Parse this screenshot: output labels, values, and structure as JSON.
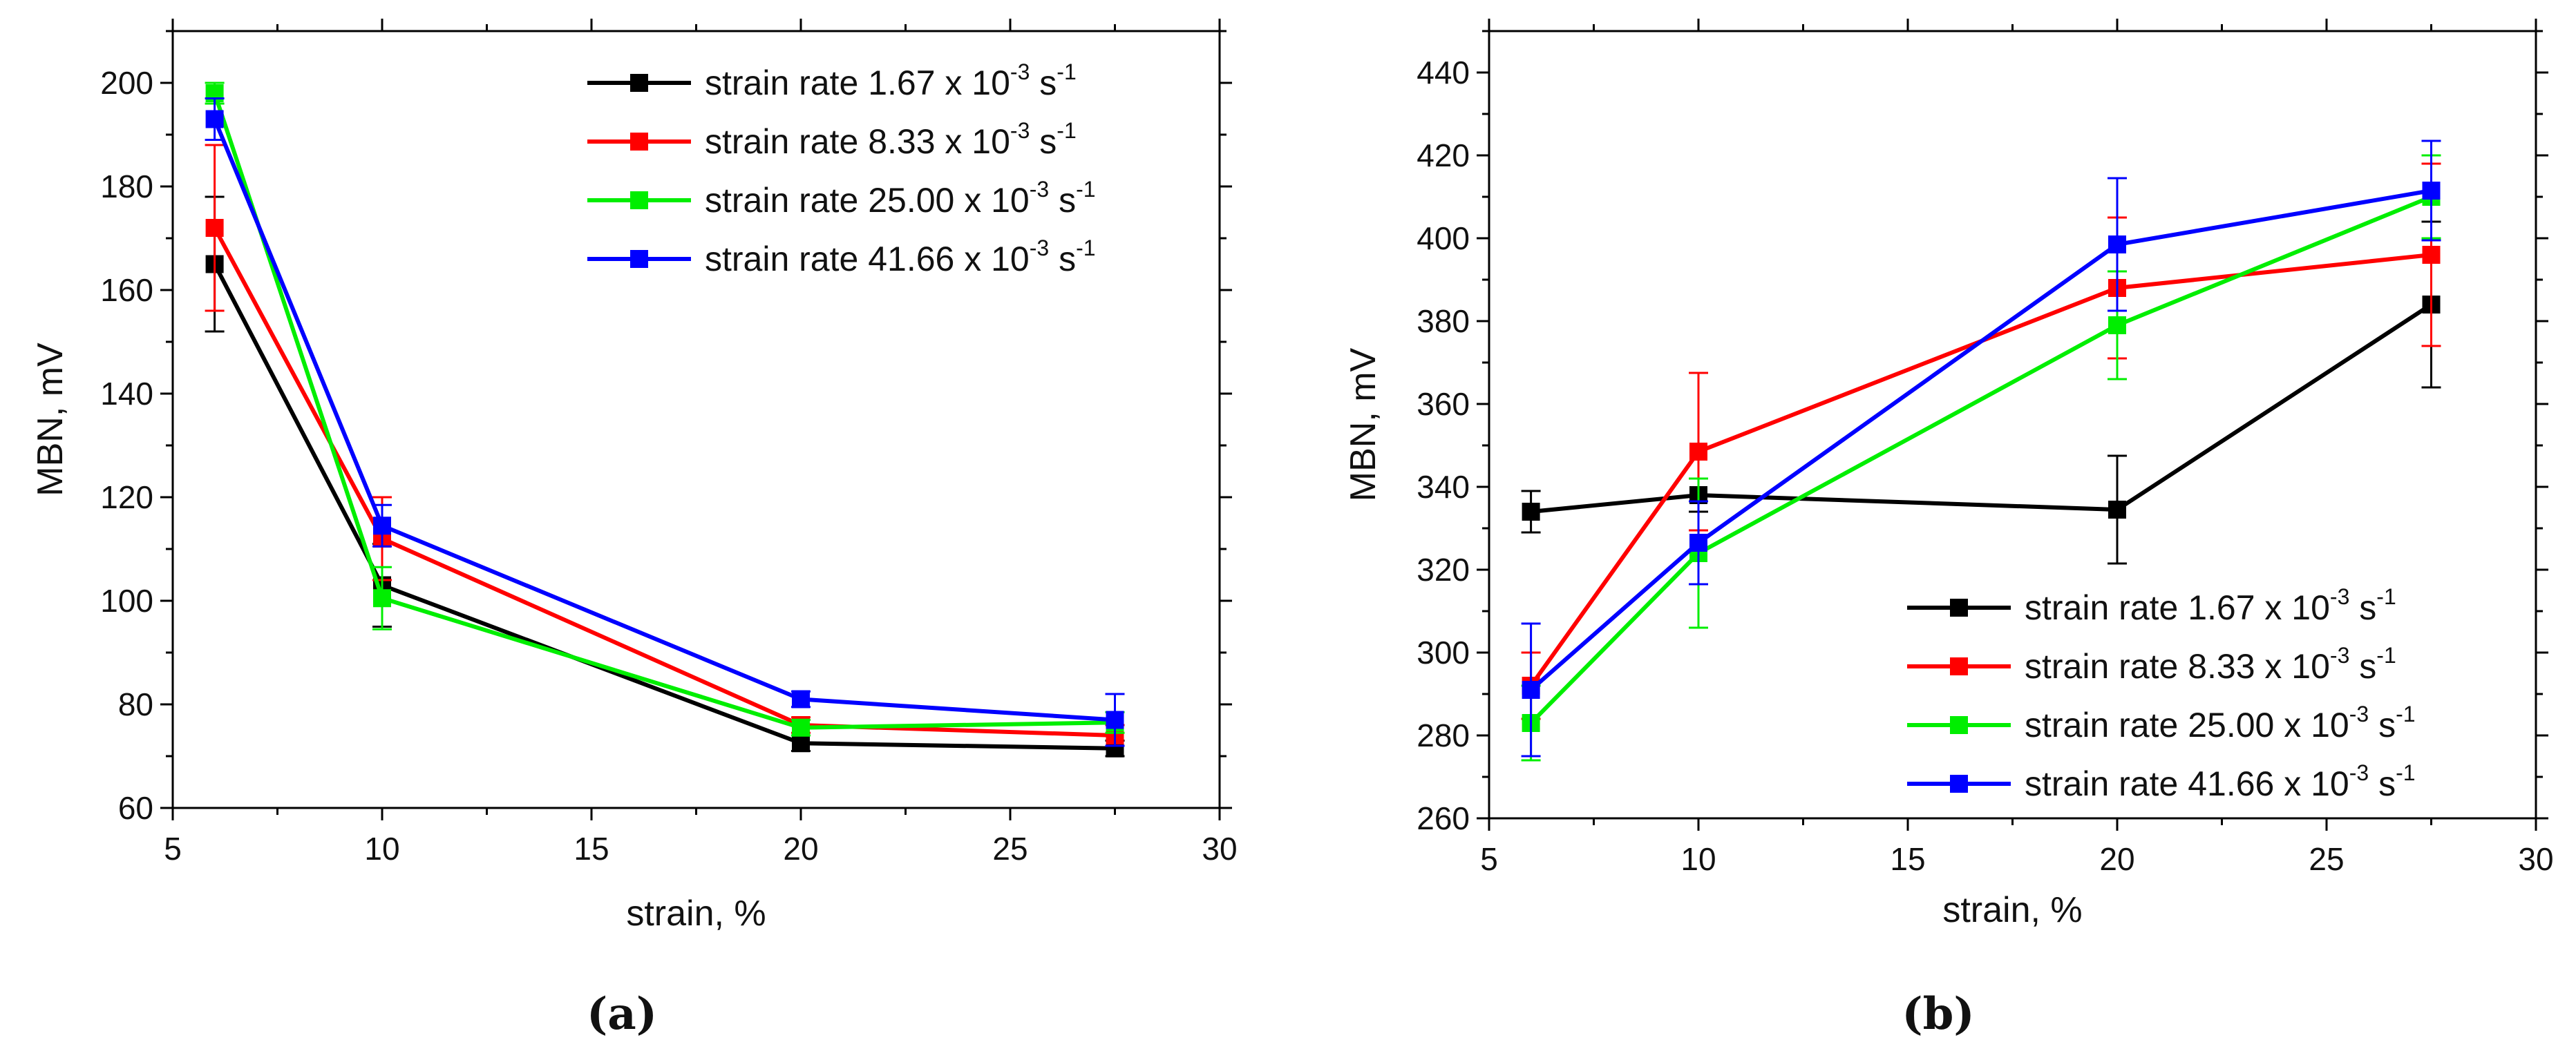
{
  "chart_data": [
    {
      "type": "line",
      "panel_label": "(a)",
      "xlabel": "strain, %",
      "ylabel": "MBN, mV",
      "xlim": [
        5,
        30
      ],
      "ylim": [
        60,
        210
      ],
      "xticks": [
        5,
        10,
        15,
        20,
        25,
        30
      ],
      "yticks": [
        60,
        80,
        100,
        120,
        140,
        160,
        180,
        200
      ],
      "x": [
        6,
        10,
        20,
        27.5
      ],
      "legend_position": "top-right",
      "series": [
        {
          "name": "strain rate 1.67 x 10⁻³ s⁻¹",
          "label_main": "strain rate 1.67 x 10",
          "exp": "-3",
          "unit": " s",
          "unit_exp": "-1",
          "color": "#000000",
          "values": [
            165,
            103,
            72.5,
            71.5
          ],
          "errors": [
            13,
            8,
            1.5,
            1.5
          ]
        },
        {
          "name": "strain rate 8.33 x 10⁻³ s⁻¹",
          "label_main": "strain rate 8.33 x 10",
          "exp": "-3",
          "unit": " s",
          "unit_exp": "-1",
          "color": "#ff0000",
          "values": [
            172,
            112,
            76,
            74
          ],
          "errors": [
            16,
            8,
            1.5,
            2
          ]
        },
        {
          "name": "strain rate 25.00 x 10⁻³ s⁻¹",
          "label_main": "strain rate 25.00 x 10",
          "exp": "-3",
          "unit": " s",
          "unit_exp": "-1",
          "color": "#00ee00",
          "values": [
            198,
            100.5,
            75.5,
            76.5
          ],
          "errors": [
            2,
            6,
            1.5,
            2
          ]
        },
        {
          "name": "strain rate 41.66 x 10⁻³ s⁻¹",
          "label_main": "strain rate 41.66 x 10",
          "exp": "-3",
          "unit": " s",
          "unit_exp": "-1",
          "color": "#0000ff",
          "values": [
            193,
            114.5,
            81,
            77
          ],
          "errors": [
            4,
            4,
            1.5,
            5
          ]
        }
      ]
    },
    {
      "type": "line",
      "panel_label": "(b)",
      "xlabel": "strain, %",
      "ylabel": "MBN, mV",
      "xlim": [
        5,
        30
      ],
      "ylim": [
        260,
        450
      ],
      "xticks": [
        5,
        10,
        15,
        20,
        25,
        30
      ],
      "yticks": [
        260,
        280,
        300,
        320,
        340,
        360,
        380,
        400,
        420,
        440
      ],
      "x": [
        6,
        10,
        20,
        27.5
      ],
      "legend_position": "bottom-right",
      "series": [
        {
          "name": "strain rate 1.67 x 10⁻³ s⁻¹",
          "label_main": "strain rate 1.67 x 10",
          "exp": "-3",
          "unit": " s",
          "unit_exp": "-1",
          "color": "#000000",
          "values": [
            334,
            338,
            334.5,
            384
          ],
          "errors": [
            5,
            4,
            13,
            20
          ]
        },
        {
          "name": "strain rate 8.33 x 10⁻³ s⁻¹",
          "label_main": "strain rate 8.33 x 10",
          "exp": "-3",
          "unit": " s",
          "unit_exp": "-1",
          "color": "#ff0000",
          "values": [
            292,
            348.5,
            388,
            396
          ],
          "errors": [
            8,
            19,
            17,
            22
          ]
        },
        {
          "name": "strain rate 25.00 x 10⁻³ s⁻¹",
          "label_main": "strain rate 25.00 x 10",
          "exp": "-3",
          "unit": " s",
          "unit_exp": "-1",
          "color": "#00ee00",
          "values": [
            283,
            324,
            379,
            410
          ],
          "errors": [
            9,
            18,
            13,
            10
          ]
        },
        {
          "name": "strain rate 41.66 x 10⁻³ s⁻¹",
          "label_main": "strain rate 41.66 x 10",
          "exp": "-3",
          "unit": " s",
          "unit_exp": "-1",
          "color": "#0000ff",
          "values": [
            291,
            326.5,
            398.5,
            411.5
          ],
          "errors": [
            16,
            10,
            16,
            12
          ]
        }
      ]
    }
  ]
}
